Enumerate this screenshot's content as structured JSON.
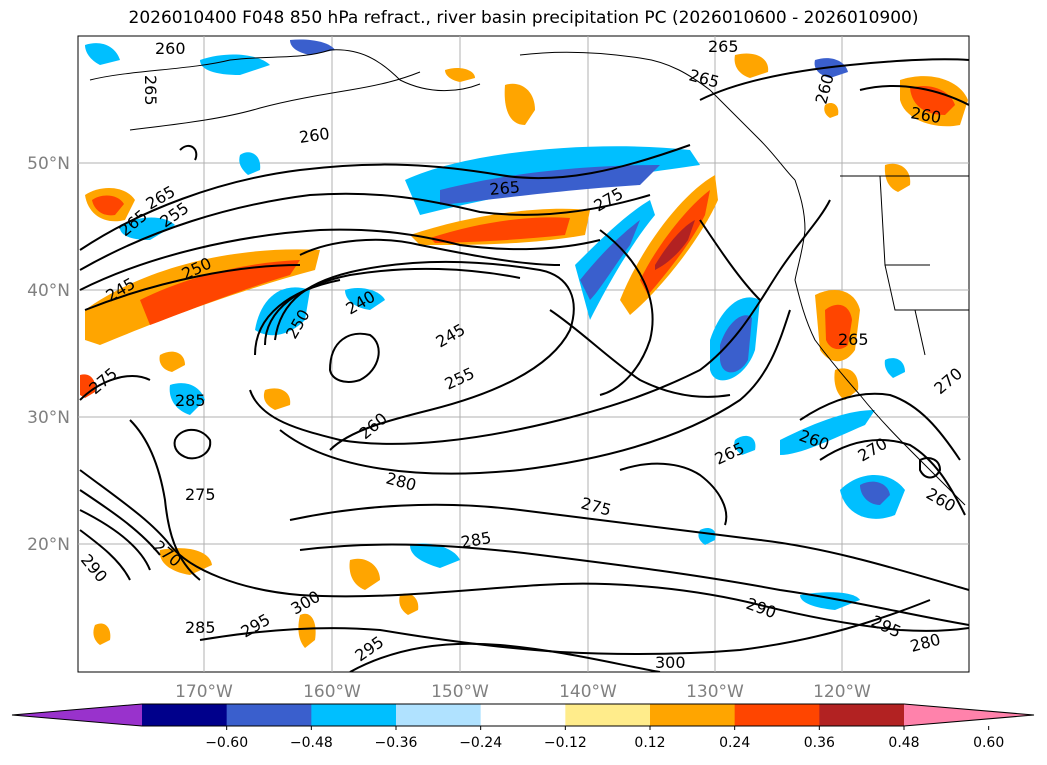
{
  "title": "2026010400 F048 850 hPa refract., river basin precipitation PC (2026010600 - 2026010900)",
  "lat_labels": [
    "50°N",
    "40°N",
    "30°N",
    "20°N"
  ],
  "lon_labels": [
    "170°W",
    "160°W",
    "150°W",
    "140°W",
    "130°W",
    "120°W"
  ],
  "contour_labels": [
    "260",
    "265",
    "265",
    "265",
    "260",
    "260",
    "260",
    "265",
    "265",
    "255",
    "265",
    "275",
    "245",
    "250",
    "240",
    "245",
    "250",
    "255",
    "275",
    "285",
    "260",
    "265",
    "270",
    "260",
    "260",
    "280",
    "275",
    "275",
    "265",
    "285",
    "270",
    "290",
    "295",
    "295",
    "300",
    "285",
    "295",
    "300",
    "290",
    "280",
    "270"
  ],
  "colorbar": {
    "tick_labels": [
      "−0.60",
      "−0.48",
      "−0.36",
      "−0.24",
      "−0.12",
      "0.12",
      "0.24",
      "0.36",
      "0.48",
      "0.60"
    ],
    "colors": [
      "#9932cc",
      "#00008b",
      "#3a5fcd",
      "#00bfff",
      "#b0e2ff",
      "#ffffff",
      "#ffec8b",
      "#ffa500",
      "#ff4500",
      "#b22222",
      "#ff82ab"
    ]
  }
}
